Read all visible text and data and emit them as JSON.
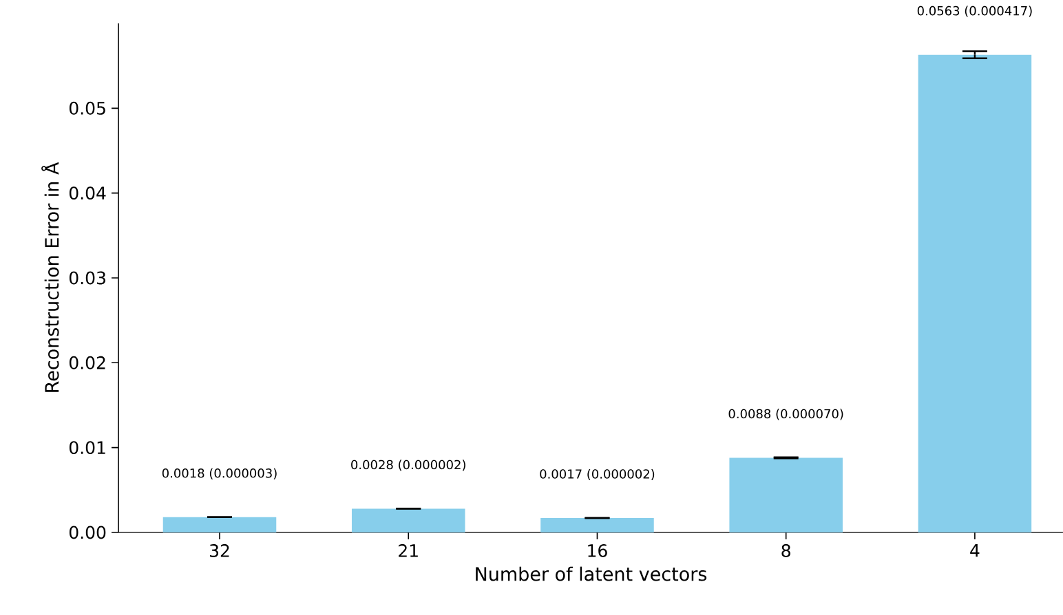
{
  "chart_data": {
    "type": "bar",
    "xlabel": "Number of latent vectors",
    "ylabel": "Reconstruction Error in Å",
    "categories": [
      "32",
      "21",
      "16",
      "8",
      "4"
    ],
    "values": [
      0.0018,
      0.0028,
      0.0017,
      0.0088,
      0.0563
    ],
    "errors": [
      3e-06,
      2e-06,
      2e-06,
      7e-05,
      0.000417
    ],
    "value_labels": [
      "0.0018 (0.000003)",
      "0.0028 (0.000002)",
      "0.0017 (0.000002)",
      "0.0088 (0.000070)",
      "0.0563 (0.000417)"
    ],
    "color": "#87ceeb",
    "ylim": [
      0,
      0.06
    ],
    "yticks": [
      {
        "value": 0,
        "label": "0.00"
      },
      {
        "value": 0.01,
        "label": "0.01"
      },
      {
        "value": 0.02,
        "label": "0.02"
      },
      {
        "value": 0.03,
        "label": "0.03"
      },
      {
        "value": 0.04,
        "label": "0.04"
      },
      {
        "value": 0.05,
        "label": "0.05"
      }
    ]
  }
}
